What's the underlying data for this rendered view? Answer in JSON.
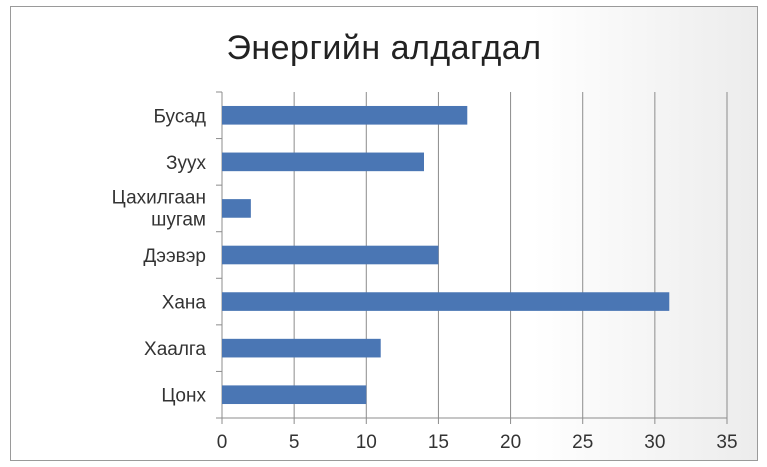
{
  "chart_data": {
    "type": "bar",
    "orientation": "horizontal",
    "title": "Энергийн алдагдал",
    "categories": [
      "Бусад",
      "Зуух",
      "Цахилгаан шугам",
      "Дээвэр",
      "Хана",
      "Хаалга",
      "Цонх"
    ],
    "values": [
      17,
      14,
      2,
      15,
      31,
      11,
      10
    ],
    "xlim": [
      0,
      35
    ],
    "xticks": [
      0,
      5,
      10,
      15,
      20,
      25,
      30,
      35
    ],
    "gridlines": "vertical",
    "legend": "none",
    "bar_color": "#4a76b4",
    "xlabel": "",
    "ylabel": ""
  }
}
